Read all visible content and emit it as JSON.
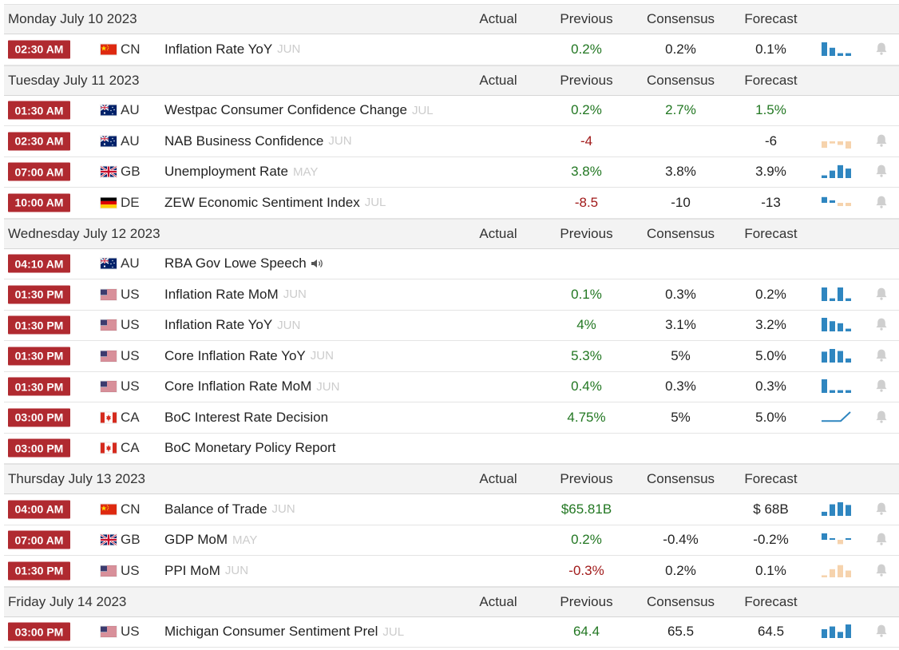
{
  "headers": {
    "actual": "Actual",
    "previous": "Previous",
    "consensus": "Consensus",
    "forecast": "Forecast"
  },
  "colors": {
    "time_badge": "#b02a30",
    "positive": "#227722",
    "negative": "#a11a1a",
    "spark_blue": "#2f86c0",
    "spark_orange": "#f6d3ad",
    "bell": "#cfcfcf"
  },
  "days": [
    {
      "label": "Monday July 10 2023",
      "events": [
        {
          "time": "02:30 AM",
          "flag": "cn",
          "country": "CN",
          "name": "Inflation Rate YoY",
          "ref": "JUN",
          "previous": "0.2%",
          "previous_tone": "pos",
          "consensus": "0.2%",
          "consensus_tone": "neu",
          "forecast": "0.1%",
          "forecast_tone": "neu",
          "spark": {
            "color": "blue",
            "values": [
              1,
              0.6,
              0.2,
              0.2
            ]
          },
          "bell": true,
          "speaker": false
        }
      ]
    },
    {
      "label": "Tuesday July 11 2023",
      "events": [
        {
          "time": "01:30 AM",
          "flag": "au",
          "country": "AU",
          "name": "Westpac Consumer Confidence Change",
          "ref": "JUL",
          "previous": "0.2%",
          "previous_tone": "pos",
          "consensus": "2.7%",
          "consensus_tone": "pos",
          "forecast": "1.5%",
          "forecast_tone": "pos",
          "spark": null,
          "bell": false,
          "speaker": false
        },
        {
          "time": "02:30 AM",
          "flag": "au",
          "country": "AU",
          "name": "NAB Business Confidence",
          "ref": "JUN",
          "previous": "-4",
          "previous_tone": "neg",
          "consensus": "",
          "consensus_tone": "neu",
          "forecast": "-6",
          "forecast_tone": "neu",
          "spark": {
            "color": "orange",
            "values": [
              -0.9,
              -0.3,
              -0.5,
              -1
            ]
          },
          "bell": true,
          "speaker": false
        },
        {
          "time": "07:00 AM",
          "flag": "gb",
          "country": "GB",
          "name": "Unemployment Rate",
          "ref": "MAY",
          "previous": "3.8%",
          "previous_tone": "pos",
          "consensus": "3.8%",
          "consensus_tone": "neu",
          "forecast": "3.9%",
          "forecast_tone": "neu",
          "spark": {
            "color": "blue",
            "values": [
              0.2,
              0.55,
              0.95,
              0.7
            ]
          },
          "bell": true,
          "speaker": false
        },
        {
          "time": "10:00 AM",
          "flag": "de",
          "country": "DE",
          "name": "ZEW Economic Sentiment Index",
          "ref": "JUL",
          "previous": "-8.5",
          "previous_tone": "neg",
          "consensus": "-10",
          "consensus_tone": "neu",
          "forecast": "-13",
          "forecast_tone": "neu",
          "spark": {
            "color": "mixed",
            "values": [
              0.8,
              0.35,
              -0.45,
              -0.45
            ]
          },
          "bell": true,
          "speaker": false
        }
      ]
    },
    {
      "label": "Wednesday July 12 2023",
      "events": [
        {
          "time": "04:10 AM",
          "flag": "au",
          "country": "AU",
          "name": "RBA Gov Lowe Speech",
          "ref": "",
          "previous": "",
          "previous_tone": "neu",
          "consensus": "",
          "consensus_tone": "neu",
          "forecast": "",
          "forecast_tone": "neu",
          "spark": null,
          "bell": false,
          "speaker": true
        },
        {
          "time": "01:30 PM",
          "flag": "us",
          "country": "US",
          "name": "Inflation Rate MoM",
          "ref": "JUN",
          "previous": "0.1%",
          "previous_tone": "pos",
          "consensus": "0.3%",
          "consensus_tone": "neu",
          "forecast": "0.2%",
          "forecast_tone": "neu",
          "spark": {
            "color": "blue",
            "values": [
              1,
              0.2,
              1,
              0.2
            ]
          },
          "bell": true,
          "speaker": false
        },
        {
          "time": "01:30 PM",
          "flag": "us",
          "country": "US",
          "name": "Inflation Rate YoY",
          "ref": "JUN",
          "previous": "4%",
          "previous_tone": "pos",
          "consensus": "3.1%",
          "consensus_tone": "neu",
          "forecast": "3.2%",
          "forecast_tone": "neu",
          "spark": {
            "color": "blue",
            "values": [
              1,
              0.75,
              0.6,
              0.2
            ]
          },
          "bell": true,
          "speaker": false
        },
        {
          "time": "01:30 PM",
          "flag": "us",
          "country": "US",
          "name": "Core Inflation Rate YoY",
          "ref": "JUN",
          "previous": "5.3%",
          "previous_tone": "pos",
          "consensus": "5%",
          "consensus_tone": "neu",
          "forecast": "5.0%",
          "forecast_tone": "neu",
          "spark": {
            "color": "blue",
            "values": [
              0.8,
              1,
              0.85,
              0.3
            ]
          },
          "bell": true,
          "speaker": false
        },
        {
          "time": "01:30 PM",
          "flag": "us",
          "country": "US",
          "name": "Core Inflation Rate MoM",
          "ref": "JUN",
          "previous": "0.4%",
          "previous_tone": "pos",
          "consensus": "0.3%",
          "consensus_tone": "neu",
          "forecast": "0.3%",
          "forecast_tone": "neu",
          "spark": {
            "color": "blue",
            "values": [
              1,
              0.2,
              0.2,
              0.2
            ]
          },
          "bell": true,
          "speaker": false
        },
        {
          "time": "03:00 PM",
          "flag": "ca",
          "country": "CA",
          "name": "BoC Interest Rate Decision",
          "ref": "",
          "previous": "4.75%",
          "previous_tone": "pos",
          "consensus": "5%",
          "consensus_tone": "neu",
          "forecast": "5.0%",
          "forecast_tone": "neu",
          "spark": {
            "color": "step",
            "values": [
              0.2,
              0.2,
              0.2,
              1
            ]
          },
          "bell": true,
          "speaker": false
        },
        {
          "time": "03:00 PM",
          "flag": "ca",
          "country": "CA",
          "name": "BoC Monetary Policy Report",
          "ref": "",
          "previous": "",
          "previous_tone": "neu",
          "consensus": "",
          "consensus_tone": "neu",
          "forecast": "",
          "forecast_tone": "neu",
          "spark": null,
          "bell": false,
          "speaker": false
        }
      ]
    },
    {
      "label": "Thursday July 13 2023",
      "events": [
        {
          "time": "04:00 AM",
          "flag": "cn",
          "country": "CN",
          "name": "Balance of Trade",
          "ref": "JUN",
          "previous": "$65.81B",
          "previous_tone": "pos",
          "consensus": "",
          "consensus_tone": "neu",
          "forecast": "$ 68B",
          "forecast_tone": "neu",
          "spark": {
            "color": "blue",
            "values": [
              0.3,
              0.85,
              1,
              0.8
            ]
          },
          "bell": true,
          "speaker": false
        },
        {
          "time": "07:00 AM",
          "flag": "gb",
          "country": "GB",
          "name": "GDP MoM",
          "ref": "MAY",
          "previous": "0.2%",
          "previous_tone": "pos",
          "consensus": "-0.4%",
          "consensus_tone": "neu",
          "forecast": "-0.2%",
          "forecast_tone": "neu",
          "spark": {
            "color": "mixed",
            "values": [
              0.9,
              0,
              -0.6,
              0.2
            ]
          },
          "bell": true,
          "speaker": false
        },
        {
          "time": "01:30 PM",
          "flag": "us",
          "country": "US",
          "name": "PPI MoM",
          "ref": "JUN",
          "previous": "-0.3%",
          "previous_tone": "neg",
          "consensus": "0.2%",
          "consensus_tone": "neu",
          "forecast": "0.1%",
          "forecast_tone": "neu",
          "spark": {
            "color": "orange",
            "values": [
              0.15,
              0.6,
              0.9,
              0.5
            ]
          },
          "bell": true,
          "speaker": false
        }
      ]
    },
    {
      "label": "Friday July 14 2023",
      "events": [
        {
          "time": "03:00 PM",
          "flag": "us",
          "country": "US",
          "name": "Michigan Consumer Sentiment Prel",
          "ref": "JUL",
          "previous": "64.4",
          "previous_tone": "pos",
          "consensus": "65.5",
          "consensus_tone": "neu",
          "forecast": "64.5",
          "forecast_tone": "neu",
          "spark": {
            "color": "blue",
            "values": [
              0.65,
              0.85,
              0.45,
              1
            ]
          },
          "bell": true,
          "speaker": false
        }
      ]
    }
  ]
}
